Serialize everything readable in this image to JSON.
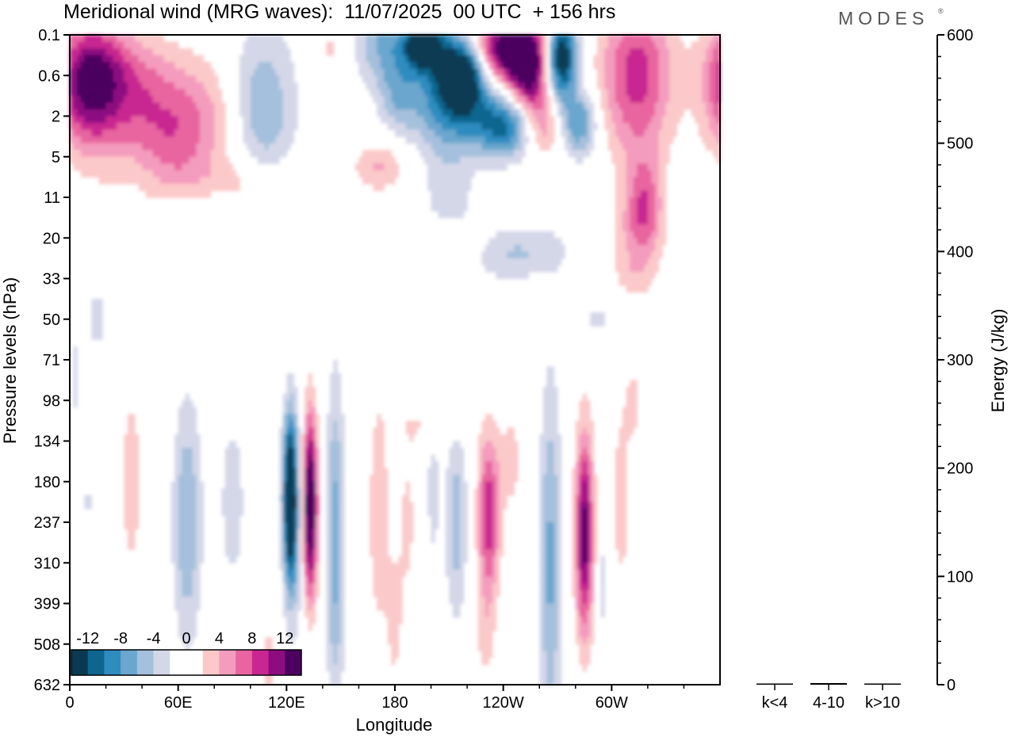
{
  "header": {
    "title": "Meridional wind (MRG waves):  11/07/2025  00 UTC  + 156 hrs",
    "brand": "MODES",
    "brand_mark": "®"
  },
  "colors": {
    "negative": [
      "#0a3a52",
      "#0d6690",
      "#2f8cbf",
      "#6aa6cd",
      "#a5c0dc",
      "#d4d7e8"
    ],
    "positive": [
      "#fbc9c9",
      "#f49cbd",
      "#e8659f",
      "#c82690",
      "#8d0d80",
      "#4c0060"
    ]
  },
  "chart_data": [
    {
      "type": "heatmap",
      "title": "Meridional wind (MRG waves)",
      "xlabel": "Longitude",
      "ylabel": "Pressure levels (hPa)",
      "x_ticks": [
        "0",
        "60E",
        "120E",
        "180",
        "120W",
        "60W"
      ],
      "y_ticks": [
        "0.1",
        "0.6",
        "2",
        "5",
        "11",
        "20",
        "33",
        "50",
        "71",
        "98",
        "134",
        "180",
        "237",
        "310",
        "399",
        "508",
        "632"
      ],
      "colorbar": {
        "labels": [
          "-12",
          "-8",
          "-4",
          "0",
          "4",
          "8",
          "12"
        ],
        "levels": [
          -14,
          -12,
          -10,
          -8,
          -6,
          -4,
          -2,
          2,
          4,
          6,
          8,
          10,
          12,
          14
        ]
      },
      "features": [
        {
          "lon": 10,
          "lev": 1.2,
          "val": 11,
          "w": 18,
          "h": 1.6
        },
        {
          "lon": 30,
          "lev": 1.1,
          "val": 6,
          "w": 26,
          "h": 1.2
        },
        {
          "lon": 45,
          "lev": 3.0,
          "val": 6,
          "w": 25,
          "h": 1.4
        },
        {
          "lon": 68,
          "lev": 2.0,
          "val": 5,
          "w": 26,
          "h": 1.4
        },
        {
          "lon": 40,
          "lev": 3.4,
          "val": -3,
          "w": 18,
          "h": 1.0
        },
        {
          "lon": 70,
          "lev": 3.8,
          "val": 2,
          "w": 24,
          "h": 0.8
        },
        {
          "lon": 68,
          "lev": 4.3,
          "val": -2.5,
          "w": 22,
          "h": 0.8
        },
        {
          "lon": 107,
          "lev": 1.8,
          "val": -6,
          "w": 18,
          "h": 2.0
        },
        {
          "lon": 102,
          "lev": 3.6,
          "val": 3,
          "w": 22,
          "h": 0.6
        },
        {
          "lon": 145,
          "lev": 0.3,
          "val": 2.5,
          "w": 10,
          "h": 0.6
        },
        {
          "lon": 175,
          "lev": 0.2,
          "val": -6,
          "w": 18,
          "h": 1.0
        },
        {
          "lon": 196,
          "lev": 0.2,
          "val": -14,
          "w": 10,
          "h": 0.6
        },
        {
          "lon": 175,
          "lev": 3.2,
          "val": 2.5,
          "w": 15,
          "h": 0.7
        },
        {
          "lon": 168,
          "lev": 3.3,
          "val": 2.2,
          "w": 12,
          "h": 0.5
        },
        {
          "lon": 182,
          "lev": 1.5,
          "val": -5,
          "w": 12,
          "h": 1.0
        },
        {
          "lon": 208,
          "lev": 1.4,
          "val": -9,
          "w": 18,
          "h": 1.6
        },
        {
          "lon": 218,
          "lev": 1.0,
          "val": -14,
          "w": 12,
          "h": 0.8
        },
        {
          "lon": 238,
          "lev": 0.3,
          "val": 12,
          "w": 16,
          "h": 0.8
        },
        {
          "lon": 254,
          "lev": 0.8,
          "val": 15,
          "w": 12,
          "h": 1.2
        },
        {
          "lon": 243,
          "lev": 2.2,
          "val": -12,
          "w": 22,
          "h": 0.8
        },
        {
          "lon": 262,
          "lev": 2.2,
          "val": 9,
          "w": 12,
          "h": 0.8
        },
        {
          "lon": 282,
          "lev": 2.2,
          "val": -8,
          "w": 10,
          "h": 0.8
        },
        {
          "lon": 272,
          "lev": 0.5,
          "val": -15,
          "w": 9,
          "h": 0.9
        },
        {
          "lon": 270,
          "lev": 1.5,
          "val": -3,
          "w": 10,
          "h": 0.8
        },
        {
          "lon": 210,
          "lev": 4.2,
          "val": -3,
          "w": 14,
          "h": 1.0
        },
        {
          "lon": 210,
          "lev": 5.3,
          "val": 3,
          "w": 18,
          "h": 0.7
        },
        {
          "lon": 238,
          "lev": 5.5,
          "val": -2.5,
          "w": 25,
          "h": 0.7
        },
        {
          "lon": 258,
          "lev": 5.3,
          "val": -2.5,
          "w": 28,
          "h": 0.6
        },
        {
          "lon": 314,
          "lev": 1.0,
          "val": 9,
          "w": 20,
          "h": 2.0
        },
        {
          "lon": 318,
          "lev": 4.2,
          "val": 7,
          "w": 10,
          "h": 1.2
        },
        {
          "lon": 312,
          "lev": 5.0,
          "val": 2.5,
          "w": 15,
          "h": 1.0
        },
        {
          "lon": 312,
          "lev": 6.0,
          "val": 2.2,
          "w": 12,
          "h": 0.6
        },
        {
          "lon": 292,
          "lev": 7.0,
          "val": -2.3,
          "w": 12,
          "h": 0.7
        },
        {
          "lon": 15,
          "lev": 7.0,
          "val": -2.5,
          "w": 8,
          "h": 1.2
        },
        {
          "lon": 3,
          "lev": 8.5,
          "val": -2.4,
          "w": 4,
          "h": 1.5
        },
        {
          "lon": 34,
          "lev": 11.0,
          "val": 4,
          "w": 5,
          "h": 2.0
        },
        {
          "lon": 65,
          "lev": 12.0,
          "val": -6,
          "w": 8,
          "h": 3.0
        },
        {
          "lon": 90,
          "lev": 11.5,
          "val": -3,
          "w": 8,
          "h": 2.5
        },
        {
          "lon": 122,
          "lev": 11.4,
          "val": -17,
          "w": 4,
          "h": 2.0
        },
        {
          "lon": 125,
          "lev": 12.5,
          "val": -3,
          "w": 6,
          "h": 3.0
        },
        {
          "lon": 133,
          "lev": 11.6,
          "val": 17,
          "w": 4,
          "h": 2.2
        },
        {
          "lon": 147,
          "lev": 12.5,
          "val": -7,
          "w": 5,
          "h": 4.0
        },
        {
          "lon": 171,
          "lev": 11.8,
          "val": 3.5,
          "w": 6,
          "h": 3.0
        },
        {
          "lon": 187,
          "lev": 12.0,
          "val": 2.5,
          "w": 5,
          "h": 2.0
        },
        {
          "lon": 201,
          "lev": 11.0,
          "val": -2.5,
          "w": 5,
          "h": 3.0
        },
        {
          "lon": 214,
          "lev": 12.0,
          "val": -5,
          "w": 6,
          "h": 2.5
        },
        {
          "lon": 198,
          "lev": 9.6,
          "val": 2.2,
          "w": 18,
          "h": 0.6
        },
        {
          "lon": 232,
          "lev": 11.8,
          "val": 9.5,
          "w": 6,
          "h": 2.0
        },
        {
          "lon": 244,
          "lev": 10.5,
          "val": 3,
          "w": 6,
          "h": 1.2
        },
        {
          "lon": 266,
          "lev": 13.0,
          "val": -6.5,
          "w": 6,
          "h": 4.5
        },
        {
          "lon": 285,
          "lev": 12.3,
          "val": 13,
          "w": 5,
          "h": 2.5
        },
        {
          "lon": 305,
          "lev": 11.5,
          "val": 3.5,
          "w": 5,
          "h": 2.0
        },
        {
          "lon": 312,
          "lev": 9.0,
          "val": 2.5,
          "w": 6,
          "h": 1.2
        },
        {
          "lon": 295,
          "lev": 13.5,
          "val": -2.5,
          "w": 4,
          "h": 2.0
        },
        {
          "lon": 110,
          "lev": 15.5,
          "val": 2.5,
          "w": 3,
          "h": 2.0
        },
        {
          "lon": 180,
          "lev": 14.5,
          "val": 2.4,
          "w": 5,
          "h": 2.0
        },
        {
          "lon": 230,
          "lev": 14.8,
          "val": 2.3,
          "w": 6,
          "h": 1.5
        },
        {
          "lon": 10,
          "lev": 11.5,
          "val": -2.3,
          "w": 3,
          "h": 1.2
        }
      ]
    },
    {
      "type": "bar",
      "ylabel": "Energy (J/kg)",
      "categories": [
        "k<4",
        "4-10",
        "k>10"
      ],
      "values": [
        0.3,
        1.5,
        0.3
      ],
      "ylim": [
        0,
        600
      ],
      "y_ticks": [
        "0",
        "100",
        "200",
        "300",
        "400",
        "500",
        "600"
      ]
    }
  ]
}
